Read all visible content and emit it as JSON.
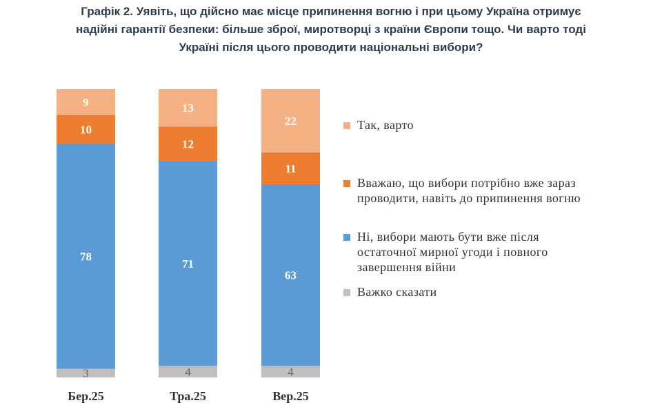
{
  "title_lines": [
    "Графік 2. Уявіть, що дійсно має місце припинення вогню і при цьому Україна отримує",
    "надійні гарантії безпеки: більше зброї, миротворці з країни Європи тощо. Чи варто тоді",
    "Україні після цього проводити національні вибори?"
  ],
  "colors": {
    "tak_varto": "#f4b183",
    "zaraz": "#ed7d31",
    "ni": "#5b9bd5",
    "vazhko": "#bfbfbf"
  },
  "legend": [
    {
      "key": "tak_varto",
      "lines": [
        "Так, варто"
      ]
    },
    {
      "key": "zaraz",
      "lines": [
        "Вважаю, що вибори потрібно вже зараз",
        "проводити, навіть до припинення вогню"
      ]
    },
    {
      "key": "ni",
      "lines": [
        "Ні, вибори мають бути вже після",
        "остаточної мирної угоди і повного",
        "завершення війни"
      ]
    },
    {
      "key": "vazhko",
      "lines": [
        "Важко сказати"
      ]
    }
  ],
  "chart_data": {
    "type": "bar",
    "stacked": true,
    "categories": [
      "Бер.25",
      "Тра.25",
      "Вер.25"
    ],
    "series": [
      {
        "key": "vazhko",
        "name": "Важко сказати",
        "values": [
          3,
          4,
          4
        ]
      },
      {
        "key": "ni",
        "name": "Ні, вибори мають бути вже після остаточної мирної угоди і повного завершення війни",
        "values": [
          78,
          71,
          63
        ]
      },
      {
        "key": "zaraz",
        "name": "Вважаю, що вибори потрібно вже зараз проводити, навіть до припинення вогню",
        "values": [
          10,
          12,
          11
        ]
      },
      {
        "key": "tak_varto",
        "name": "Так, варто",
        "values": [
          9,
          13,
          22
        ]
      }
    ],
    "ylim": [
      0,
      100
    ],
    "legend_position": "right",
    "grid": false
  }
}
